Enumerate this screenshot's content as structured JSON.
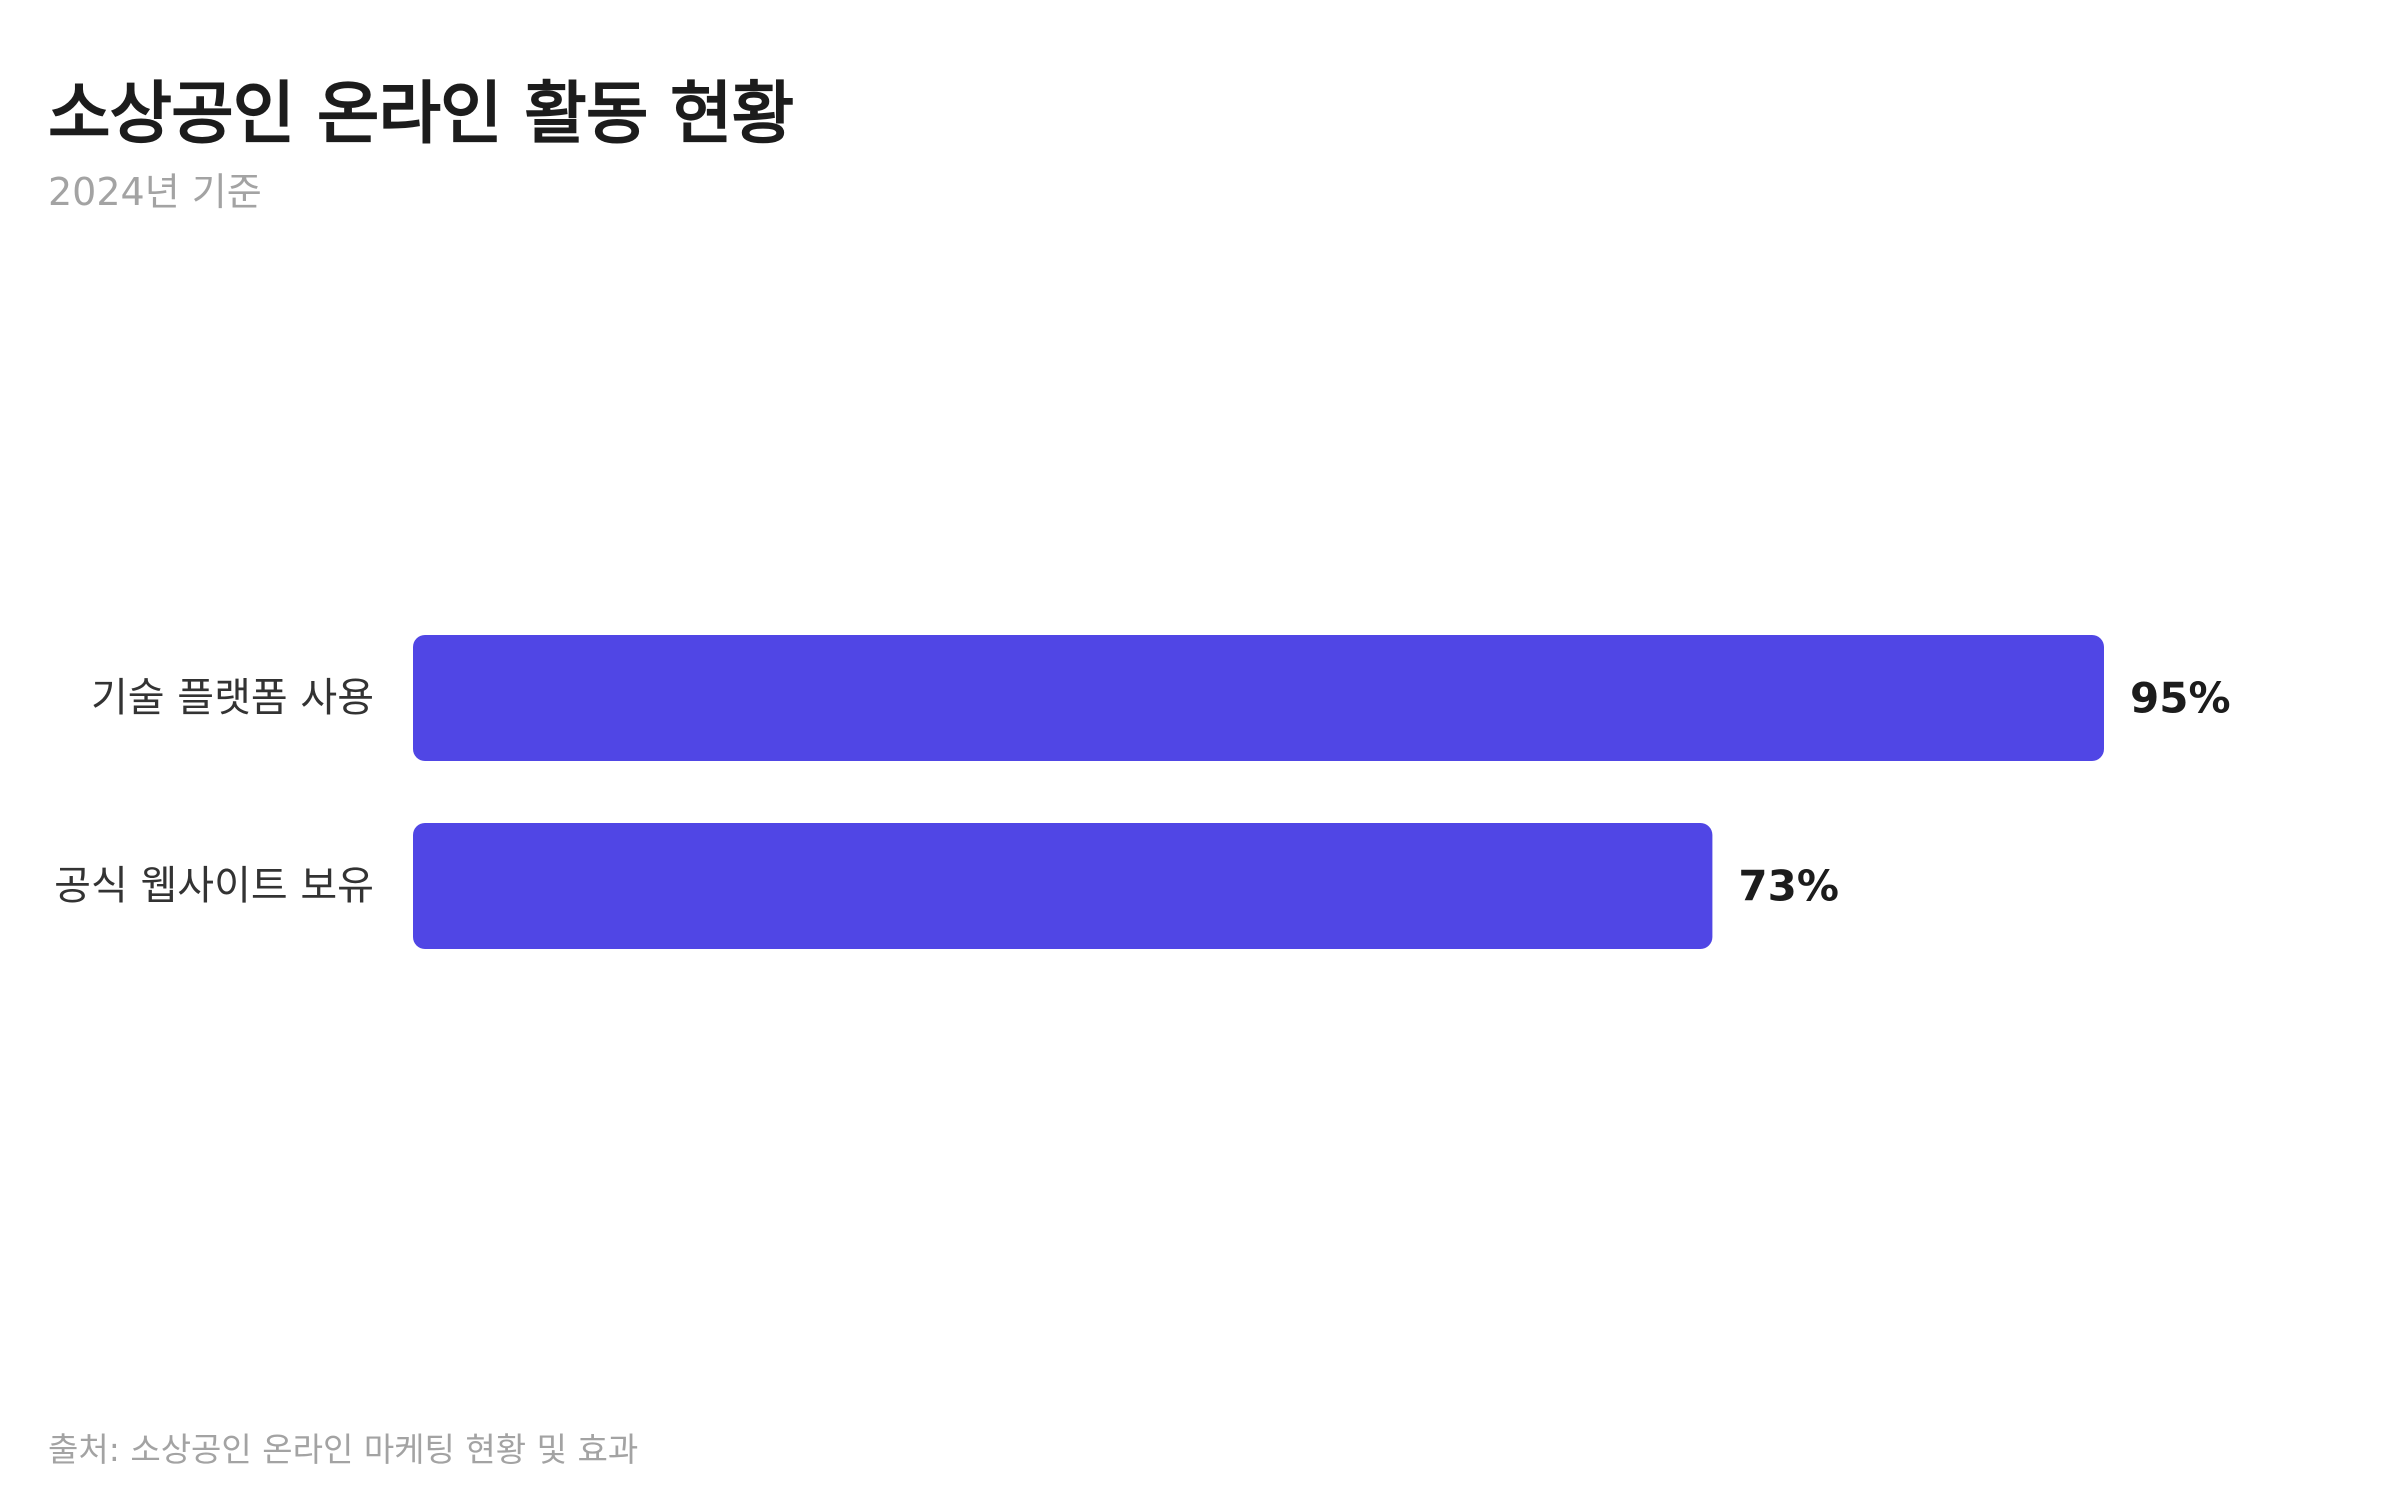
{
  "title": "소상공인 온라인 활동 현황",
  "subtitle": "2024년 기준",
  "source": "출처: 소상공인 온라인 마케팅 현황 및 효과",
  "colors": {
    "bar": "#5046e5",
    "label": "#333333",
    "value": "#1c1c1c"
  },
  "chart_data": {
    "type": "bar",
    "orientation": "horizontal",
    "categories": [
      "기술 플랫폼 사용",
      "공식 웹사이트 보유"
    ],
    "values": [
      95,
      73
    ],
    "value_labels": [
      "95%",
      "73%"
    ],
    "unit": "%",
    "xlim": [
      0,
      100
    ],
    "grid": false,
    "legend": "none"
  }
}
